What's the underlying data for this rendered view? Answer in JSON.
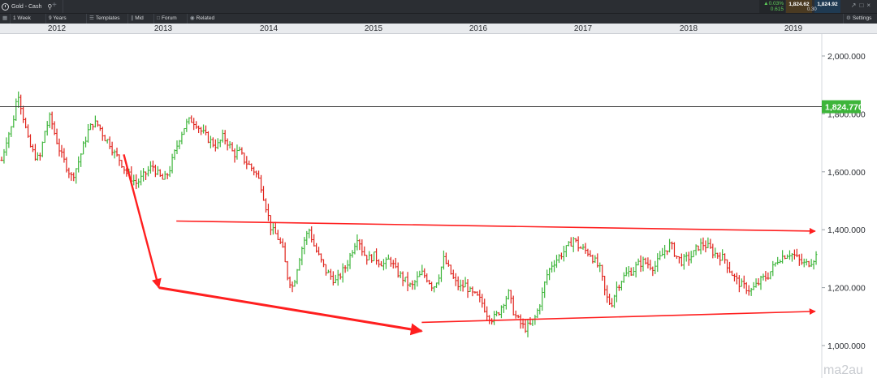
{
  "window": {
    "instrument": "Gold - Cash",
    "timeframe": "1 Week",
    "range": "9 Years",
    "templates_label": "Templates",
    "mid_label": "Mid",
    "forum_label": "Forum",
    "related_label": "Related",
    "settings_label": "Settings"
  },
  "quote": {
    "change_pct": "0.03%",
    "change_abs": "0.615",
    "sell": "1,824.62",
    "buy": "1,824.92",
    "spread": "0.30"
  },
  "colors": {
    "up_bar": "#3db53a",
    "down_bar": "#e0231c",
    "trendline": "#ff1f1f",
    "current_price_line": "#3a3a3a",
    "current_price_badge": "#3db53a",
    "toolbar_bg": "#2b2e33"
  },
  "watermark": "ma2au",
  "chart_data": {
    "type": "bar",
    "x_axis": [
      "2012",
      "2013",
      "2014",
      "2015",
      "2016",
      "2017",
      "2018",
      "2019"
    ],
    "y_ticks": [
      "2,000.000",
      "1,800.000",
      "1,600.000",
      "1,400.000",
      "1,200.000",
      "1,000.000"
    ],
    "ylim": [
      935,
      2060
    ],
    "current_price": 1824.77,
    "current_price_label": "1,824.770",
    "grid": false,
    "series_weekly_close_approx": [
      1640,
      1720,
      1760,
      1880,
      1790,
      1700,
      1660,
      1640,
      1740,
      1790,
      1720,
      1660,
      1620,
      1580,
      1620,
      1680,
      1740,
      1770,
      1760,
      1720,
      1700,
      1660,
      1640,
      1600,
      1580,
      1560,
      1580,
      1600,
      1620,
      1590,
      1570,
      1600,
      1660,
      1720,
      1760,
      1780,
      1770,
      1740,
      1720,
      1700,
      1690,
      1720,
      1700,
      1660,
      1670,
      1640,
      1620,
      1600,
      1560,
      1480,
      1400,
      1380,
      1340,
      1240,
      1200,
      1290,
      1360,
      1400,
      1340,
      1300,
      1260,
      1240,
      1220,
      1250,
      1280,
      1330,
      1380,
      1320,
      1300,
      1310,
      1290,
      1280,
      1300,
      1260,
      1240,
      1220,
      1200,
      1230,
      1250,
      1230,
      1200,
      1240,
      1300,
      1260,
      1220,
      1200,
      1210,
      1180,
      1170,
      1150,
      1110,
      1090,
      1110,
      1150,
      1180,
      1110,
      1080,
      1060,
      1070,
      1100,
      1160,
      1240,
      1280,
      1300,
      1320,
      1340,
      1370,
      1340,
      1330,
      1320,
      1290,
      1260,
      1170,
      1140,
      1200,
      1230,
      1250,
      1260,
      1280,
      1290,
      1280,
      1270,
      1300,
      1330,
      1350,
      1310,
      1290,
      1300,
      1310,
      1340,
      1350,
      1340,
      1320,
      1310,
      1300,
      1260,
      1230,
      1210,
      1200,
      1190,
      1210,
      1230,
      1240,
      1270,
      1300,
      1310,
      1320,
      1310,
      1290,
      1280,
      1290,
      1310
    ],
    "annotations": [
      {
        "type": "arrow",
        "from": [
          "2013-02",
          1660
        ],
        "to": [
          "2013-06",
          1200
        ]
      },
      {
        "type": "arrow",
        "from": [
          "2013-06",
          1200
        ],
        "to": [
          "2015-12",
          1050
        ]
      },
      {
        "type": "arrow",
        "from": [
          "2013-08",
          1430
        ],
        "to": [
          "2019-09",
          1395
        ]
      },
      {
        "type": "arrow",
        "from": [
          "2015-12",
          1080
        ],
        "to": [
          "2019-09",
          1118
        ]
      }
    ]
  }
}
